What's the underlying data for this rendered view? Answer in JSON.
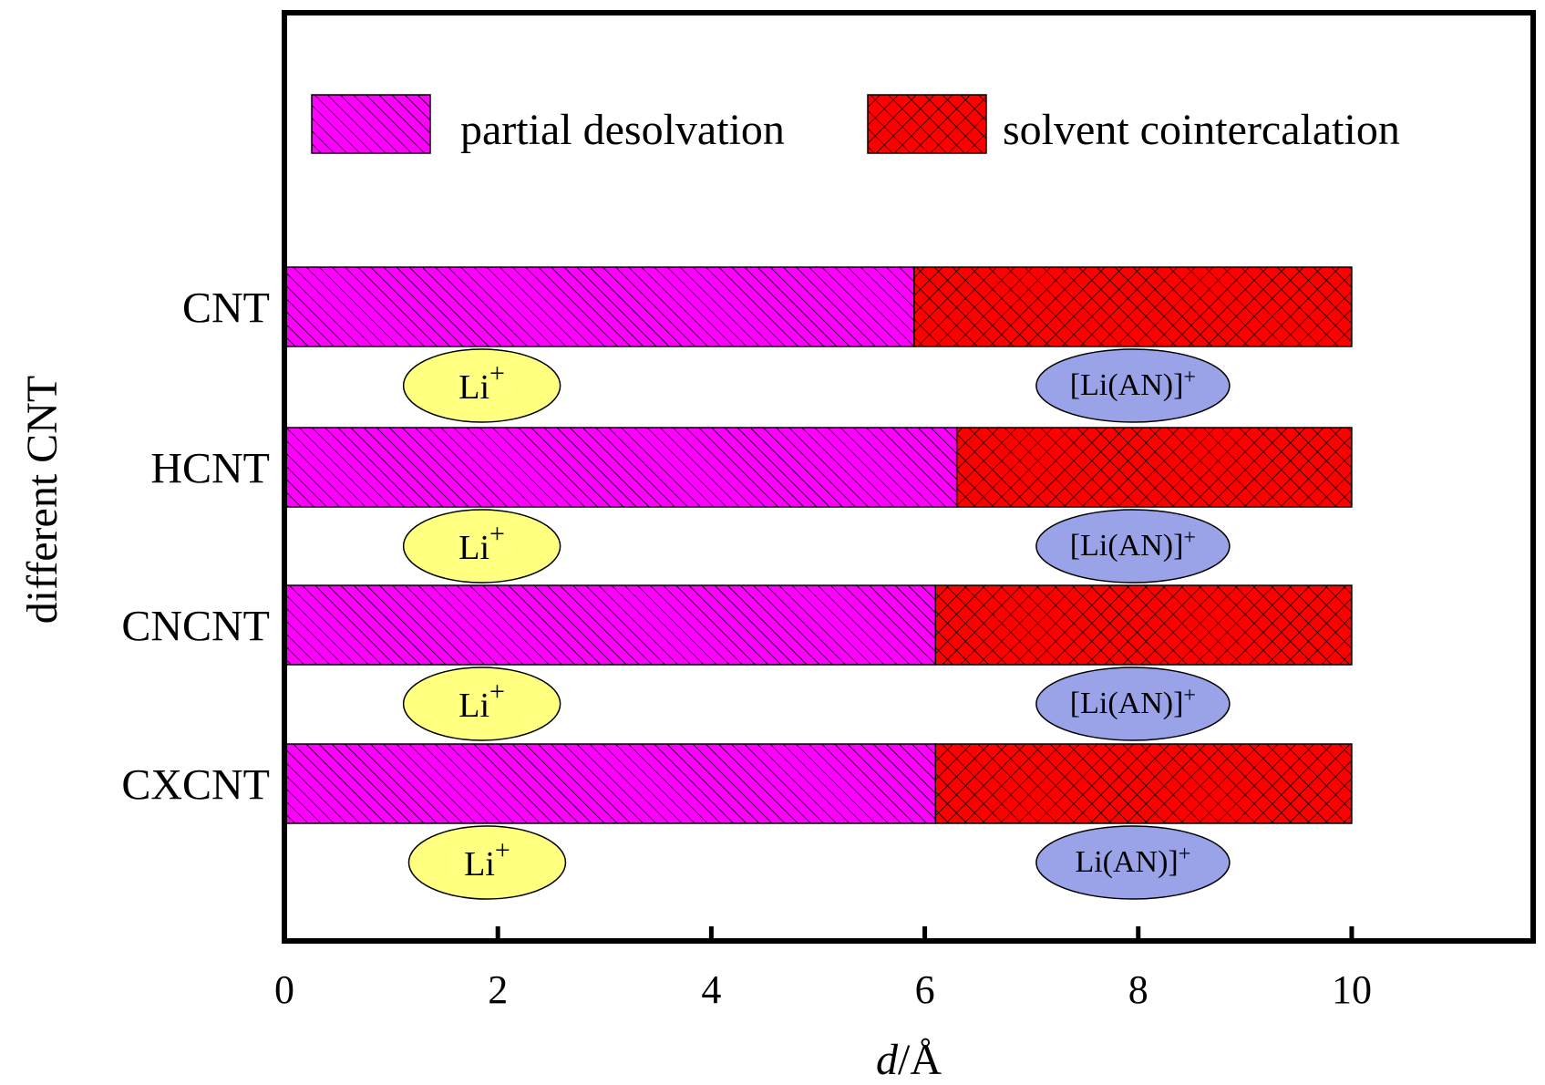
{
  "chart_data": {
    "type": "bar",
    "orientation": "horizontal",
    "stacked": true,
    "categories": [
      "CNT",
      "HCNT",
      "CNCNT",
      "CXCNT"
    ],
    "series": [
      {
        "name": "partial desolvation",
        "values": [
          5.9,
          6.3,
          6.1,
          6.1
        ],
        "color": "#ff00ff",
        "pattern": "diagonal-hatch"
      },
      {
        "name": "solvent cointercalation",
        "values": [
          4.1,
          3.7,
          3.9,
          3.9
        ],
        "color": "#ff0000",
        "pattern": "crosshatch"
      }
    ],
    "xlabel_italic": "d",
    "xlabel_rest": "/Å",
    "ylabel": "different CNT",
    "xlim": [
      0,
      11.7
    ],
    "xticks": [
      "0",
      "2",
      "4",
      "6",
      "8",
      "10"
    ],
    "legend_position": "top",
    "annotations": [
      {
        "category": "CNT",
        "x": 1.85,
        "base": "Li",
        "sup": "+",
        "color": "#ffff80",
        "kind": "left"
      },
      {
        "category": "CNT",
        "x": 7.95,
        "base": "[Li(AN)]",
        "sup": "+",
        "color": "#9aa3e8",
        "kind": "right"
      },
      {
        "category": "HCNT",
        "x": 1.85,
        "base": "Li",
        "sup": "+",
        "color": "#ffff80",
        "kind": "left"
      },
      {
        "category": "HCNT",
        "x": 7.95,
        "base": "[Li(AN)]",
        "sup": "+",
        "color": "#9aa3e8",
        "kind": "right"
      },
      {
        "category": "CNCNT",
        "x": 1.85,
        "base": "Li",
        "sup": "+",
        "color": "#ffff80",
        "kind": "left"
      },
      {
        "category": "CNCNT",
        "x": 7.95,
        "base": "[Li(AN)]",
        "sup": "+",
        "color": "#9aa3e8",
        "kind": "right"
      },
      {
        "category": "CXCNT",
        "x": 1.9,
        "base": "Li",
        "sup": "+",
        "color": "#ffff80",
        "kind": "left"
      },
      {
        "category": "CXCNT",
        "x": 7.95,
        "base": "Li(AN)]",
        "sup": "+",
        "color": "#9aa3e8",
        "kind": "right"
      }
    ]
  }
}
